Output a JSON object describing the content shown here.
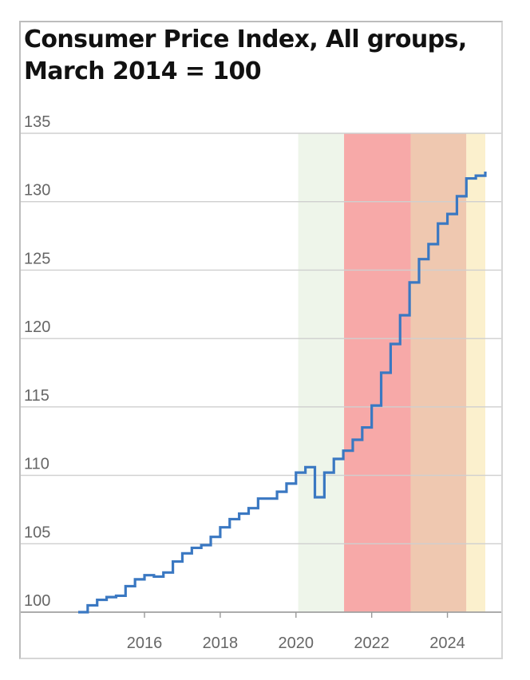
{
  "chart_data": {
    "type": "line",
    "title_lines": [
      "Consumer Price Index, All groups,",
      "March 2014 = 100"
    ],
    "xlabel": "",
    "ylabel": "",
    "ylim": [
      100,
      135
    ],
    "xlim": [
      2014.25,
      2025.0
    ],
    "yticks": [
      100,
      105,
      110,
      115,
      120,
      125,
      130,
      135
    ],
    "xticks": [
      2016,
      2018,
      2020,
      2022,
      2024
    ],
    "grid": true,
    "step": true,
    "line_color": "#3a78c2",
    "shaded_regions": [
      {
        "x0": 2020.06,
        "x1": 2021.27,
        "color": "#eef5ea"
      },
      {
        "x0": 2021.27,
        "x1": 2023.03,
        "color": "#f7a9a8"
      },
      {
        "x0": 2023.03,
        "x1": 2024.5,
        "color": "#efc8b0"
      },
      {
        "x0": 2024.5,
        "x1": 2025.0,
        "color": "#fbf0cd"
      }
    ],
    "series": [
      {
        "x": [
          2014.25,
          2014.5,
          2014.75,
          2015.0,
          2015.25,
          2015.5,
          2015.75,
          2016.0,
          2016.25,
          2016.5,
          2016.75,
          2017.0,
          2017.25,
          2017.5,
          2017.75,
          2018.0,
          2018.25,
          2018.5,
          2018.75,
          2019.0,
          2019.25,
          2019.5,
          2019.75,
          2020.0,
          2020.25,
          2020.5,
          2020.75,
          2021.0,
          2021.25,
          2021.5,
          2021.75,
          2022.0,
          2022.25,
          2022.5,
          2022.75,
          2023.0,
          2023.25,
          2023.5,
          2023.75,
          2024.0,
          2024.25,
          2024.5,
          2024.75,
          2025.0
        ],
        "values": [
          100.0,
          100.5,
          100.9,
          101.1,
          101.2,
          101.9,
          102.4,
          102.7,
          102.6,
          102.9,
          103.7,
          104.3,
          104.7,
          104.9,
          105.5,
          106.2,
          106.8,
          107.2,
          107.6,
          108.3,
          108.3,
          108.8,
          109.4,
          110.2,
          110.6,
          108.4,
          110.2,
          111.2,
          111.8,
          112.6,
          113.5,
          115.1,
          117.5,
          119.6,
          121.7,
          124.1,
          125.8,
          126.9,
          128.4,
          129.1,
          130.4,
          131.7,
          131.9,
          132.2
        ]
      }
    ]
  }
}
